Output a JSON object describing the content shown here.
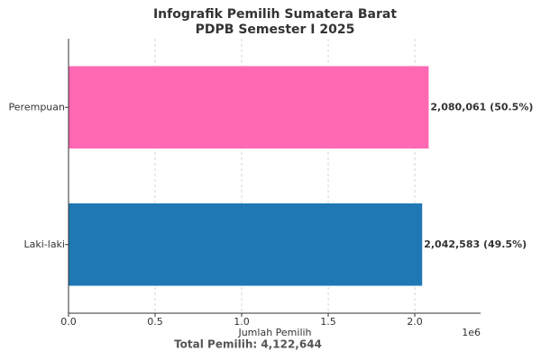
{
  "chart_data": {
    "type": "barh",
    "title": [
      "Infografik Pemilih Sumatera Barat",
      "PDPB Semester I 2025"
    ],
    "categories": [
      "Laki-laki",
      "Perempuan"
    ],
    "values": [
      2042583,
      2080061
    ],
    "value_labels": [
      "2,042,583 (49.5%)",
      "2,080,061 (50.5%)"
    ],
    "colors": [
      "#1f77b4",
      "#ff69b4"
    ],
    "xlim": [
      0,
      2380000
    ],
    "xticks": [
      {
        "value": 0,
        "label": "0.0"
      },
      {
        "value": 500000,
        "label": "0.5"
      },
      {
        "value": 1000000,
        "label": "1.0"
      },
      {
        "value": 1500000,
        "label": "1.5"
      },
      {
        "value": 2000000,
        "label": "2.0"
      }
    ],
    "x_offset_label": "1e6",
    "xlabel": "Jumlah Pemilih",
    "annotation": "Total Pemilih: 4,122,644",
    "grid": true
  }
}
